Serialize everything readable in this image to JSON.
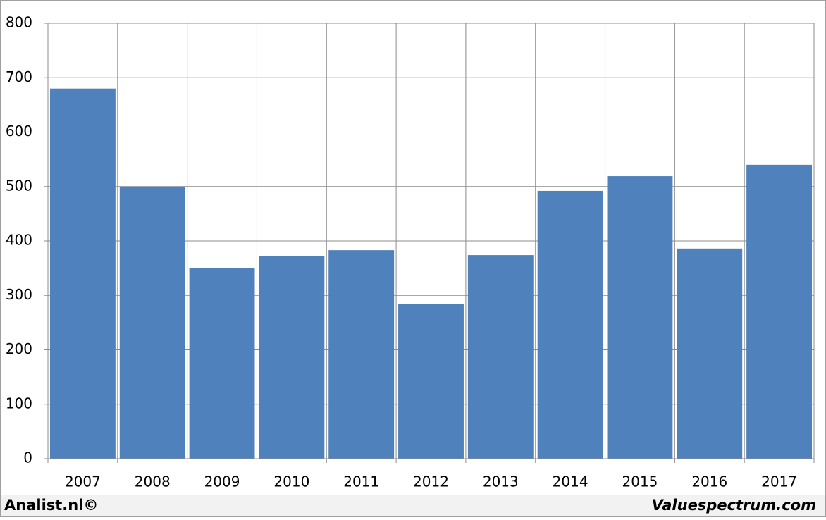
{
  "chart_data": {
    "type": "bar",
    "categories": [
      "2007",
      "2008",
      "2009",
      "2010",
      "2011",
      "2012",
      "2013",
      "2014",
      "2015",
      "2016",
      "2017"
    ],
    "values": [
      680,
      500,
      350,
      372,
      383,
      284,
      374,
      492,
      519,
      386,
      540
    ],
    "color": "#4f81bd",
    "ylim": [
      0,
      800
    ],
    "yticks": [
      0,
      100,
      200,
      300,
      400,
      500,
      600,
      700,
      800
    ],
    "grid": true,
    "annotations": [
      "Analist.nl©",
      "Valuespectrum.com"
    ]
  }
}
